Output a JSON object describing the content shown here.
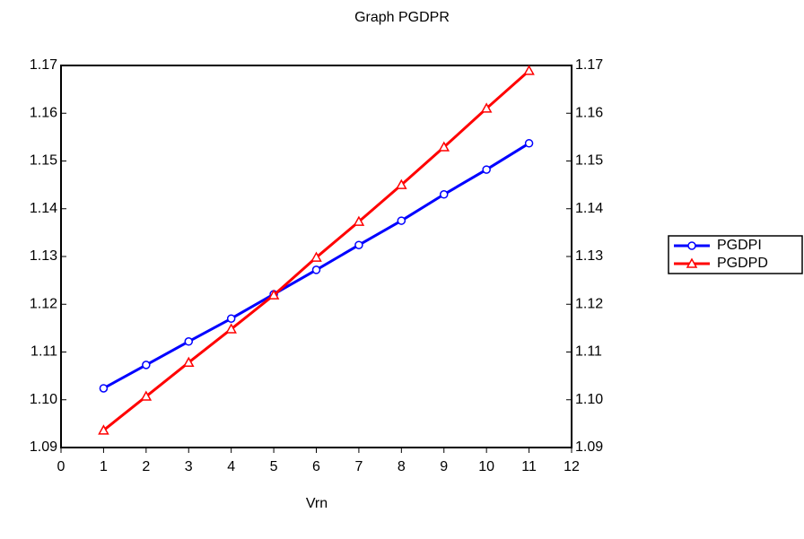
{
  "chart_data": {
    "type": "line",
    "title": "Graph PGDPR",
    "x_label": "Vrn",
    "x": [
      1,
      2,
      3,
      4,
      5,
      6,
      7,
      8,
      9,
      10,
      11
    ],
    "series": [
      {
        "name": "PGDPI",
        "color": "#0000ff",
        "marker": "circle",
        "values": [
          1.1024,
          1.1073,
          1.1122,
          1.117,
          1.1221,
          1.1272,
          1.1324,
          1.1375,
          1.143,
          1.1482,
          1.1537
        ]
      },
      {
        "name": "PGDPD",
        "color": "#ff0000",
        "marker": "triangle",
        "values": [
          1.0936,
          1.1007,
          1.1078,
          1.1148,
          1.1219,
          1.1298,
          1.1373,
          1.145,
          1.1529,
          1.161,
          1.1689
        ]
      }
    ],
    "xlim": [
      0,
      12
    ],
    "xticks": [
      0,
      1,
      2,
      3,
      4,
      5,
      6,
      7,
      8,
      9,
      10,
      11,
      12
    ],
    "ylim": [
      1.09,
      1.17
    ],
    "yticks": [
      1.09,
      {
        "value": 1.1,
        "label": "1.10"
      },
      1.11,
      {
        "value": 1.12,
        "label": "1.12"
      },
      1.13,
      1.14,
      1.15,
      1.16,
      1.17
    ],
    "grid": false,
    "legend": "right"
  }
}
